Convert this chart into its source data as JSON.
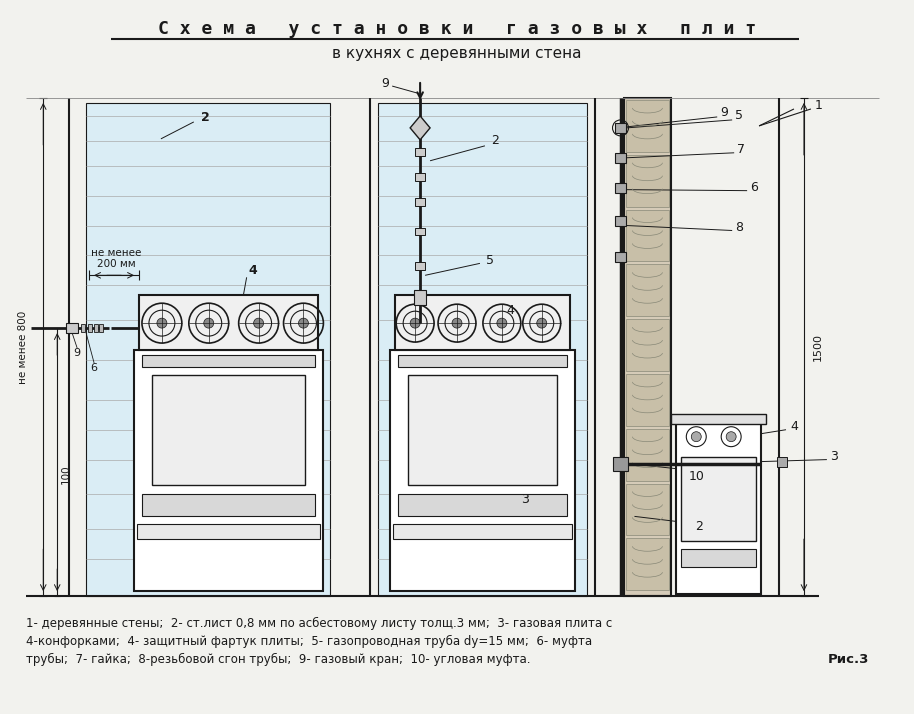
{
  "title_line1": "С х е м а   у с т а н о в к и   г а з о в ы х   п л и т",
  "title_line2": "в кухнях с деревянными стена",
  "caption_line1": "1- деревянные стены;  2- ст.лист 0,8 мм по асбестовому листу толщ.3 мм;  3- газовая плита с",
  "caption_line2": "4-конфорками;  4- защитный фартук плиты;  5- газопроводная труба dy=15 мм;  6- муфта",
  "caption_line3": "трубы;  7- гайка;  8-резьбовой сгон трубы;  9- газовый кран;  10- угловая муфта.",
  "fig_label": "Рис.3",
  "bg_color": "#f2f2ee",
  "draw_color": "#1a1a1a",
  "light_blue": "#daedf5",
  "wall_color": "#d8d0c0",
  "dim_800": "не менее 800",
  "dim_200": "не менее\n200 мм",
  "dim_100": "100",
  "dim_1500": "1500",
  "title_fs": 13,
  "subtitle_fs": 11,
  "label_fs": 9,
  "caption_fs": 8.5
}
